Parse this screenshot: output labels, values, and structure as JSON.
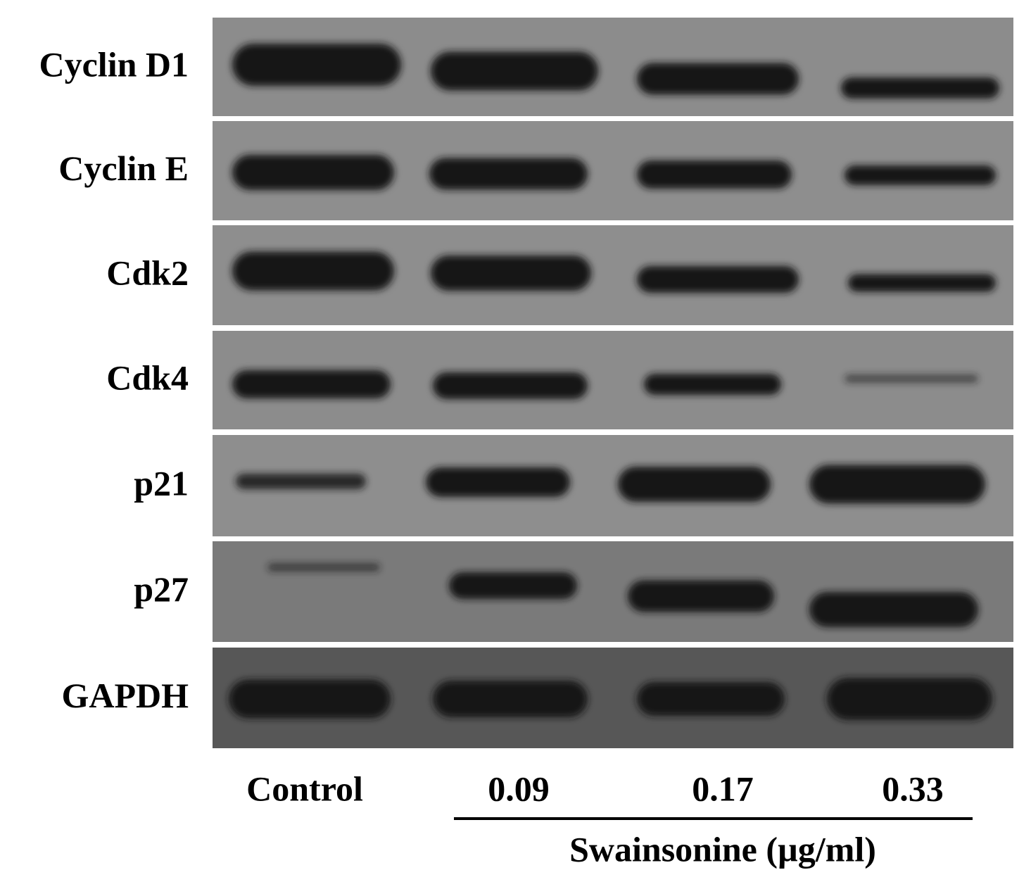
{
  "row_labels": [
    "Cyclin D1",
    "Cyclin E",
    "Cdk2",
    "Cdk4",
    "p21",
    "p27",
    "GAPDH"
  ],
  "lanes": [
    "Control",
    "0.09",
    "0.17",
    "0.33"
  ],
  "treatment": "Swainsonine (µg/ml)"
}
